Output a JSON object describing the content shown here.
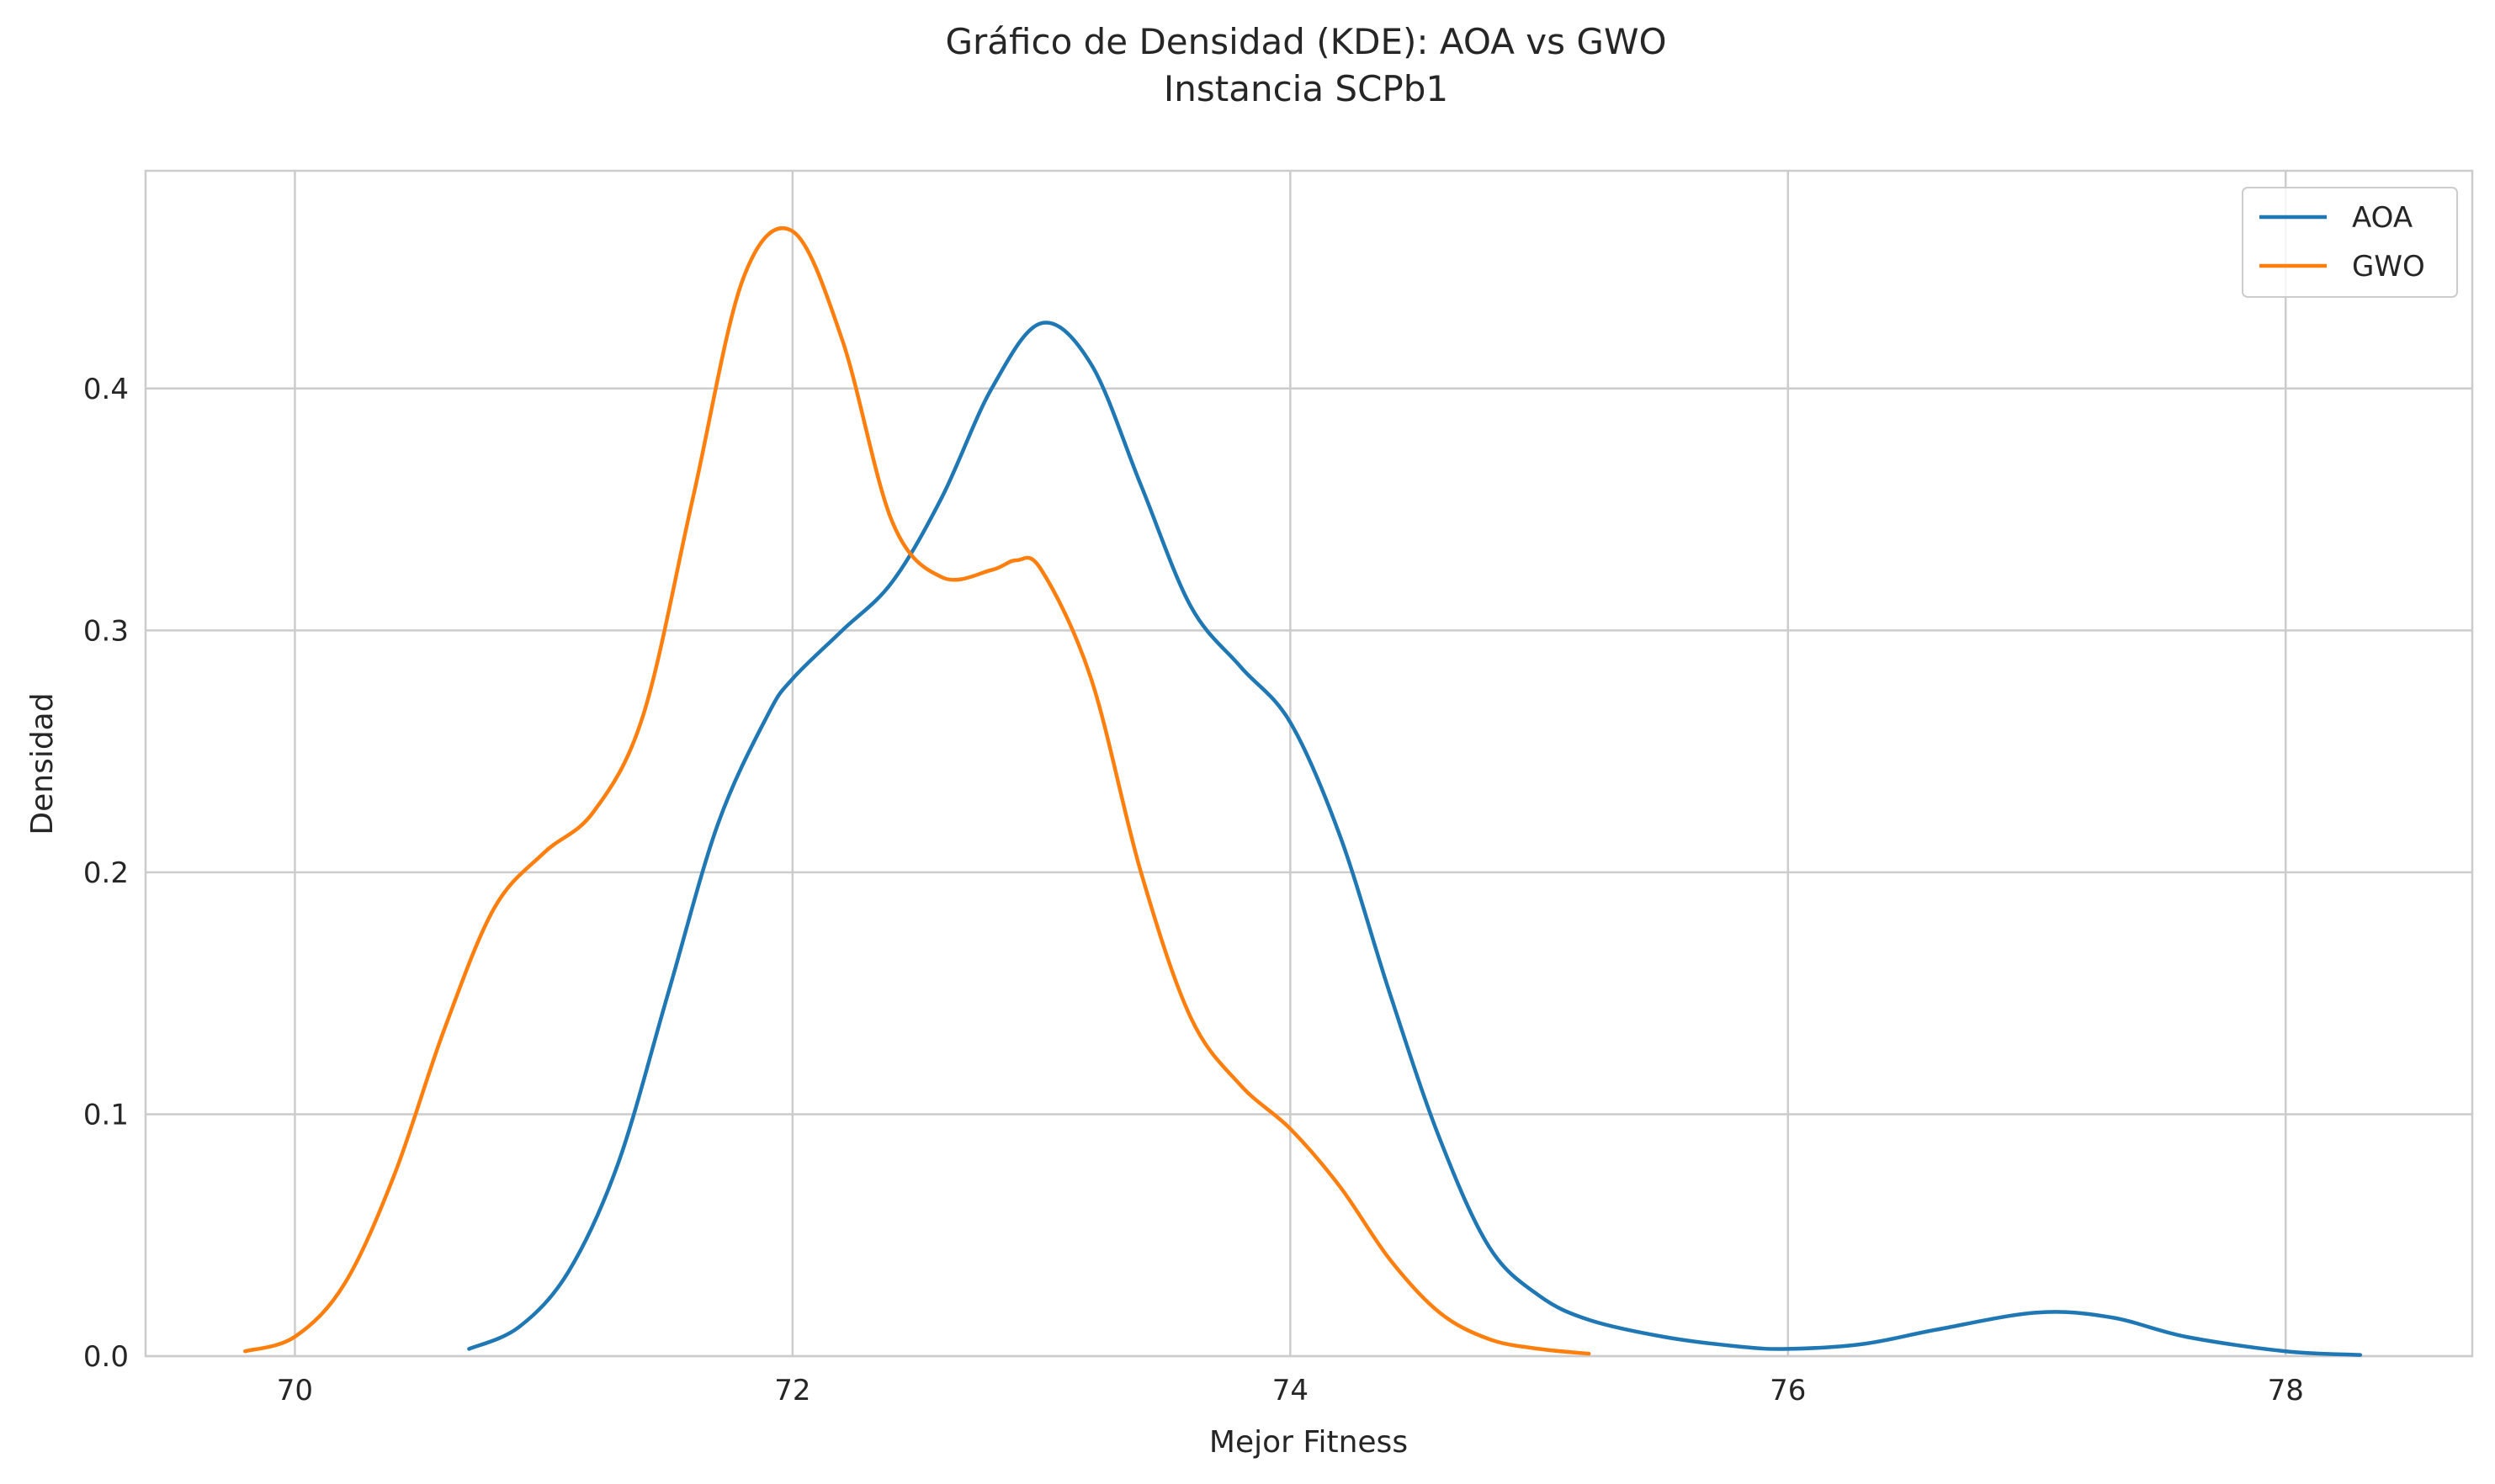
{
  "chart_data": {
    "type": "line",
    "title": "Gráfico de Densidad (KDE): AOA vs GWO",
    "subtitle": "Instancia SCPb1",
    "xlabel": "Mejor Fitness",
    "ylabel": "Densidad",
    "xlim": [
      69.4,
      78.75
    ],
    "ylim": [
      0,
      0.49
    ],
    "x_ticks": [
      70,
      72,
      74,
      76,
      78
    ],
    "x_tick_labels": [
      "70",
      "72",
      "74",
      "76",
      "78"
    ],
    "y_ticks": [
      0,
      0.1,
      0.2,
      0.3,
      0.4
    ],
    "y_tick_labels": [
      "0.0",
      "0.1",
      "0.2",
      "0.3",
      "0.4"
    ],
    "grid": true,
    "legend_position": "top-right",
    "series": [
      {
        "name": "AOA",
        "color": "#1f77b4",
        "points": [
          [
            70.7,
            0.003
          ],
          [
            70.9,
            0.012
          ],
          [
            71.1,
            0.035
          ],
          [
            71.3,
            0.08
          ],
          [
            71.5,
            0.15
          ],
          [
            71.7,
            0.22
          ],
          [
            71.9,
            0.265
          ],
          [
            72.0,
            0.28
          ],
          [
            72.2,
            0.3
          ],
          [
            72.4,
            0.32
          ],
          [
            72.6,
            0.355
          ],
          [
            72.8,
            0.4
          ],
          [
            73.0,
            0.427
          ],
          [
            73.2,
            0.41
          ],
          [
            73.4,
            0.36
          ],
          [
            73.6,
            0.31
          ],
          [
            73.8,
            0.285
          ],
          [
            74.0,
            0.262
          ],
          [
            74.2,
            0.215
          ],
          [
            74.4,
            0.15
          ],
          [
            74.6,
            0.09
          ],
          [
            74.8,
            0.045
          ],
          [
            75.0,
            0.025
          ],
          [
            75.2,
            0.015
          ],
          [
            75.5,
            0.008
          ],
          [
            75.8,
            0.004
          ],
          [
            76.0,
            0.003
          ],
          [
            76.3,
            0.005
          ],
          [
            76.6,
            0.011
          ],
          [
            77.0,
            0.018
          ],
          [
            77.3,
            0.016
          ],
          [
            77.6,
            0.008
          ],
          [
            78.0,
            0.002
          ],
          [
            78.3,
            0.0005
          ]
        ]
      },
      {
        "name": "GWO",
        "color": "#ff7f0e",
        "points": [
          [
            69.8,
            0.002
          ],
          [
            70.0,
            0.008
          ],
          [
            70.2,
            0.03
          ],
          [
            70.4,
            0.075
          ],
          [
            70.6,
            0.135
          ],
          [
            70.8,
            0.185
          ],
          [
            71.0,
            0.208
          ],
          [
            71.2,
            0.225
          ],
          [
            71.4,
            0.265
          ],
          [
            71.6,
            0.355
          ],
          [
            71.8,
            0.445
          ],
          [
            72.0,
            0.465
          ],
          [
            72.2,
            0.42
          ],
          [
            72.4,
            0.345
          ],
          [
            72.6,
            0.322
          ],
          [
            72.8,
            0.325
          ],
          [
            72.9,
            0.329
          ],
          [
            73.0,
            0.325
          ],
          [
            73.2,
            0.28
          ],
          [
            73.4,
            0.2
          ],
          [
            73.6,
            0.14
          ],
          [
            73.8,
            0.112
          ],
          [
            74.0,
            0.094
          ],
          [
            74.2,
            0.07
          ],
          [
            74.4,
            0.04
          ],
          [
            74.6,
            0.018
          ],
          [
            74.8,
            0.007
          ],
          [
            75.0,
            0.003
          ],
          [
            75.2,
            0.001
          ]
        ]
      }
    ]
  }
}
